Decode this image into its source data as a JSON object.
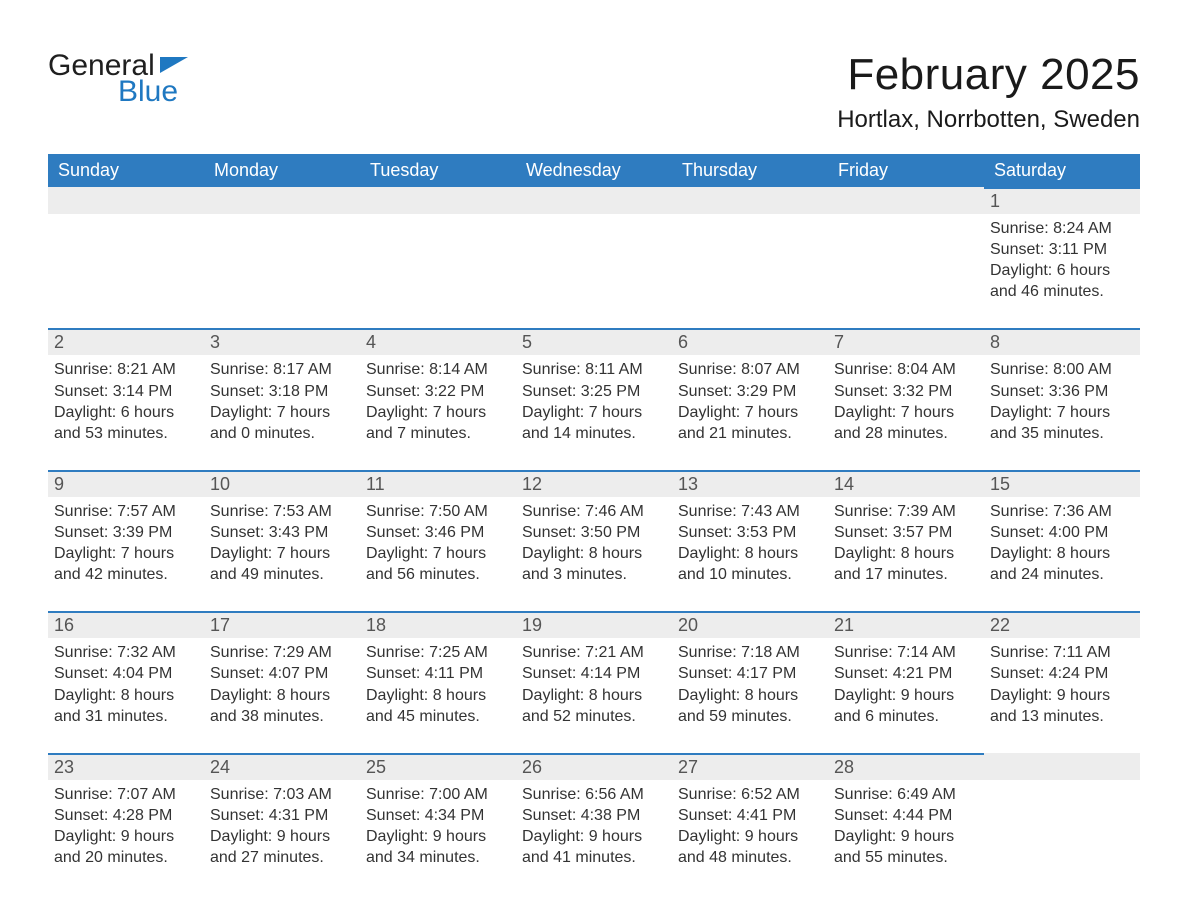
{
  "logo": {
    "text_general": "General",
    "text_blue": "Blue"
  },
  "title": {
    "month": "February 2025",
    "location": "Hortlax, Norrbotten, Sweden"
  },
  "colors": {
    "header_bg": "#2f7cc0",
    "header_fg": "#ffffff",
    "daynum_bg": "#ededed",
    "daynum_border": "#2f7cc0",
    "text": "#333333",
    "logo_blue": "#1f78c1",
    "page_bg": "#ffffff"
  },
  "weekdays": [
    "Sunday",
    "Monday",
    "Tuesday",
    "Wednesday",
    "Thursday",
    "Friday",
    "Saturday"
  ],
  "weeks": [
    [
      null,
      null,
      null,
      null,
      null,
      null,
      {
        "d": "1",
        "sr": "8:24 AM",
        "ss": "3:11 PM",
        "dl": "6 hours and 46 minutes."
      }
    ],
    [
      {
        "d": "2",
        "sr": "8:21 AM",
        "ss": "3:14 PM",
        "dl": "6 hours and 53 minutes."
      },
      {
        "d": "3",
        "sr": "8:17 AM",
        "ss": "3:18 PM",
        "dl": "7 hours and 0 minutes."
      },
      {
        "d": "4",
        "sr": "8:14 AM",
        "ss": "3:22 PM",
        "dl": "7 hours and 7 minutes."
      },
      {
        "d": "5",
        "sr": "8:11 AM",
        "ss": "3:25 PM",
        "dl": "7 hours and 14 minutes."
      },
      {
        "d": "6",
        "sr": "8:07 AM",
        "ss": "3:29 PM",
        "dl": "7 hours and 21 minutes."
      },
      {
        "d": "7",
        "sr": "8:04 AM",
        "ss": "3:32 PM",
        "dl": "7 hours and 28 minutes."
      },
      {
        "d": "8",
        "sr": "8:00 AM",
        "ss": "3:36 PM",
        "dl": "7 hours and 35 minutes."
      }
    ],
    [
      {
        "d": "9",
        "sr": "7:57 AM",
        "ss": "3:39 PM",
        "dl": "7 hours and 42 minutes."
      },
      {
        "d": "10",
        "sr": "7:53 AM",
        "ss": "3:43 PM",
        "dl": "7 hours and 49 minutes."
      },
      {
        "d": "11",
        "sr": "7:50 AM",
        "ss": "3:46 PM",
        "dl": "7 hours and 56 minutes."
      },
      {
        "d": "12",
        "sr": "7:46 AM",
        "ss": "3:50 PM",
        "dl": "8 hours and 3 minutes."
      },
      {
        "d": "13",
        "sr": "7:43 AM",
        "ss": "3:53 PM",
        "dl": "8 hours and 10 minutes."
      },
      {
        "d": "14",
        "sr": "7:39 AM",
        "ss": "3:57 PM",
        "dl": "8 hours and 17 minutes."
      },
      {
        "d": "15",
        "sr": "7:36 AM",
        "ss": "4:00 PM",
        "dl": "8 hours and 24 minutes."
      }
    ],
    [
      {
        "d": "16",
        "sr": "7:32 AM",
        "ss": "4:04 PM",
        "dl": "8 hours and 31 minutes."
      },
      {
        "d": "17",
        "sr": "7:29 AM",
        "ss": "4:07 PM",
        "dl": "8 hours and 38 minutes."
      },
      {
        "d": "18",
        "sr": "7:25 AM",
        "ss": "4:11 PM",
        "dl": "8 hours and 45 minutes."
      },
      {
        "d": "19",
        "sr": "7:21 AM",
        "ss": "4:14 PM",
        "dl": "8 hours and 52 minutes."
      },
      {
        "d": "20",
        "sr": "7:18 AM",
        "ss": "4:17 PM",
        "dl": "8 hours and 59 minutes."
      },
      {
        "d": "21",
        "sr": "7:14 AM",
        "ss": "4:21 PM",
        "dl": "9 hours and 6 minutes."
      },
      {
        "d": "22",
        "sr": "7:11 AM",
        "ss": "4:24 PM",
        "dl": "9 hours and 13 minutes."
      }
    ],
    [
      {
        "d": "23",
        "sr": "7:07 AM",
        "ss": "4:28 PM",
        "dl": "9 hours and 20 minutes."
      },
      {
        "d": "24",
        "sr": "7:03 AM",
        "ss": "4:31 PM",
        "dl": "9 hours and 27 minutes."
      },
      {
        "d": "25",
        "sr": "7:00 AM",
        "ss": "4:34 PM",
        "dl": "9 hours and 34 minutes."
      },
      {
        "d": "26",
        "sr": "6:56 AM",
        "ss": "4:38 PM",
        "dl": "9 hours and 41 minutes."
      },
      {
        "d": "27",
        "sr": "6:52 AM",
        "ss": "4:41 PM",
        "dl": "9 hours and 48 minutes."
      },
      {
        "d": "28",
        "sr": "6:49 AM",
        "ss": "4:44 PM",
        "dl": "9 hours and 55 minutes."
      },
      null
    ]
  ],
  "labels": {
    "sunrise": "Sunrise:",
    "sunset": "Sunset:",
    "daylight": "Daylight:"
  }
}
